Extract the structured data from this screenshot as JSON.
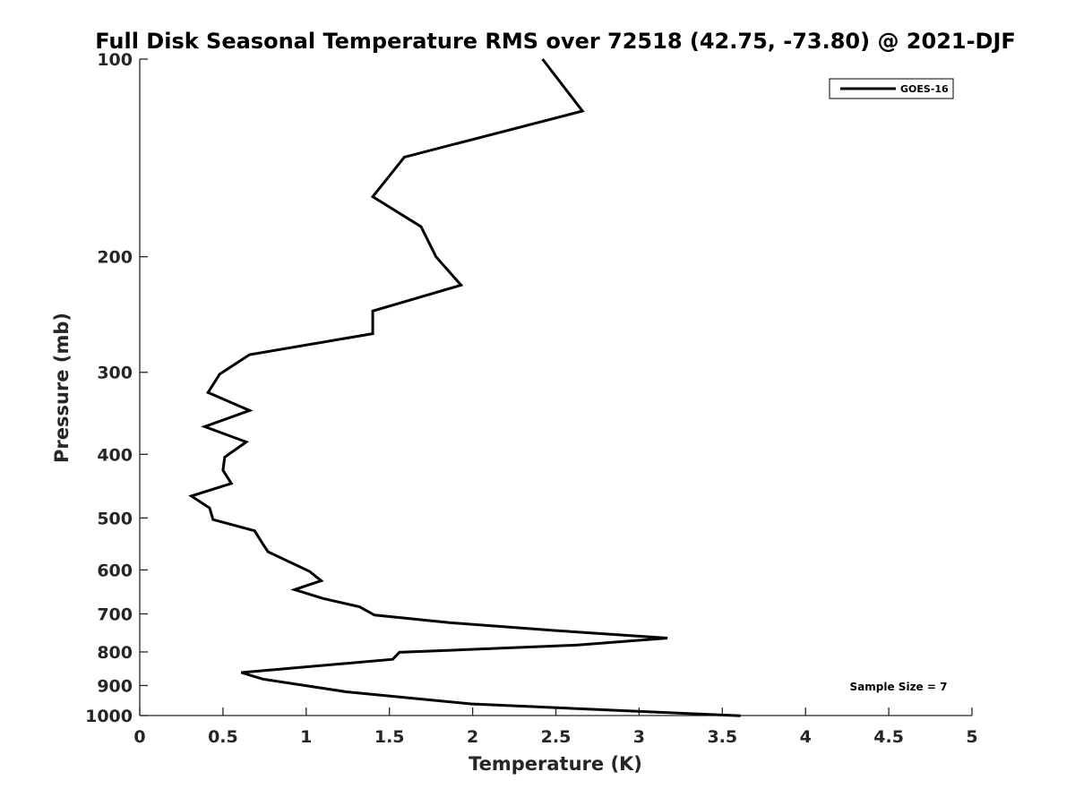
{
  "chart_data": {
    "type": "line",
    "title": "Full Disk Seasonal Temperature RMS over 72518 (42.75, -73.80) @ 2021-DJF",
    "xlabel": "Temperature (K)",
    "ylabel": "Pressure (mb)",
    "xlim": [
      0,
      5
    ],
    "ylim": [
      1000,
      100
    ],
    "y_scale": "log",
    "y_reversed": true,
    "xticks": [
      0,
      0.5,
      1,
      1.5,
      2,
      2.5,
      3,
      3.5,
      4,
      4.5,
      5
    ],
    "xtick_labels": [
      "0",
      "0.5",
      "1",
      "1.5",
      "2",
      "2.5",
      "3",
      "3.5",
      "4",
      "4.5",
      "5"
    ],
    "yticks": [
      100,
      200,
      300,
      400,
      500,
      600,
      700,
      800,
      900,
      1000
    ],
    "ytick_labels": [
      "100",
      "200",
      "300",
      "400",
      "500",
      "600",
      "700",
      "800",
      "900",
      "1000"
    ],
    "grid": false,
    "legend_position": "top-right",
    "series": [
      {
        "name": "GOES-16",
        "color": "#000000",
        "points": [
          [
            2.42,
            100
          ],
          [
            2.66,
            120
          ],
          [
            1.59,
            141
          ],
          [
            1.4,
            162
          ],
          [
            1.69,
            180
          ],
          [
            1.78,
            200
          ],
          [
            1.93,
            221
          ],
          [
            1.4,
            242
          ],
          [
            1.4,
            262
          ],
          [
            0.66,
            282
          ],
          [
            0.48,
            302
          ],
          [
            0.41,
            322
          ],
          [
            0.66,
            343
          ],
          [
            0.39,
            363
          ],
          [
            0.64,
            383
          ],
          [
            0.51,
            404
          ],
          [
            0.5,
            423
          ],
          [
            0.55,
            443
          ],
          [
            0.31,
            463
          ],
          [
            0.42,
            483
          ],
          [
            0.44,
            503
          ],
          [
            0.69,
            523
          ],
          [
            0.73,
            543
          ],
          [
            0.77,
            563
          ],
          [
            1.02,
            603
          ],
          [
            1.09,
            623
          ],
          [
            0.93,
            643
          ],
          [
            1.1,
            663
          ],
          [
            1.32,
            683
          ],
          [
            1.41,
            703
          ],
          [
            1.86,
            722
          ],
          [
            2.49,
            742
          ],
          [
            3.17,
            762
          ],
          [
            2.63,
            781
          ],
          [
            1.56,
            801
          ],
          [
            1.52,
            821
          ],
          [
            0.61,
            860
          ],
          [
            0.74,
            880
          ],
          [
            1.24,
            920
          ],
          [
            1.99,
            960
          ],
          [
            3.61,
            1001
          ]
        ]
      }
    ],
    "annotation": "Sample Size = 7"
  }
}
